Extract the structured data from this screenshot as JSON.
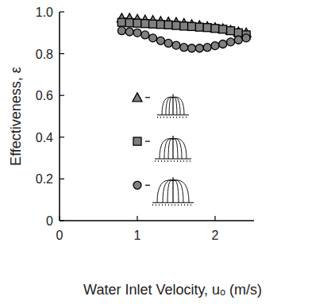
{
  "chart_data": {
    "type": "line",
    "x_label": "Water Inlet Velocity, uₒ (m/s)",
    "y_label": "Effectiveness, ε",
    "x": [
      0.8,
      0.9,
      1.0,
      1.1,
      1.2,
      1.3,
      1.4,
      1.5,
      1.6,
      1.7,
      1.8,
      1.9,
      2.0,
      2.1,
      2.2,
      2.3,
      2.4
    ],
    "series": [
      {
        "color": "#808080",
        "marker": "triangle",
        "line_style": "solid",
        "values": [
          0.97,
          0.97,
          0.965,
          0.962,
          0.96,
          0.955,
          0.952,
          0.95,
          0.945,
          0.94,
          0.935,
          0.93,
          0.925,
          0.92,
          0.912,
          0.905,
          0.9
        ]
      },
      {
        "color": "#808080",
        "marker": "square",
        "line_style": "solid",
        "values": [
          0.95,
          0.948,
          0.946,
          0.944,
          0.942,
          0.94,
          0.938,
          0.935,
          0.932,
          0.93,
          0.927,
          0.925,
          0.921,
          0.917,
          0.91,
          0.9,
          0.89
        ]
      },
      {
        "color": "#808080",
        "marker": "circle",
        "line_style": "solid",
        "values": [
          0.91,
          0.905,
          0.9,
          0.89,
          0.875,
          0.862,
          0.85,
          0.84,
          0.83,
          0.826,
          0.826,
          0.83,
          0.838,
          0.846,
          0.856,
          0.866,
          0.875
        ]
      }
    ],
    "xlim": [
      0,
      2.5
    ],
    "xticks": [
      0,
      1,
      2
    ],
    "ylim": [
      0,
      1
    ],
    "yticks": [
      0,
      0.2,
      0.4,
      0.6,
      0.8,
      {
        "value": 1,
        "label": "1.0"
      }
    ],
    "grid": false,
    "legend": "center"
  }
}
